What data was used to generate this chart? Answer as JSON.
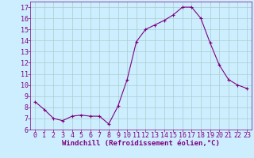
{
  "x": [
    0,
    1,
    2,
    3,
    4,
    5,
    6,
    7,
    8,
    9,
    10,
    11,
    12,
    13,
    14,
    15,
    16,
    17,
    18,
    19,
    20,
    21,
    22,
    23
  ],
  "y": [
    8.5,
    7.8,
    7.0,
    6.8,
    7.2,
    7.3,
    7.2,
    7.2,
    6.5,
    8.1,
    10.5,
    13.9,
    15.0,
    15.4,
    15.8,
    16.3,
    17.0,
    17.0,
    16.0,
    13.8,
    11.8,
    10.5,
    10.0,
    9.7
  ],
  "line_color": "#800080",
  "marker": "+",
  "marker_size": 3,
  "background_color": "#cceeff",
  "grid_color": "#aacccc",
  "xlabel": "Windchill (Refroidissement éolien,°C)",
  "xlabel_color": "#800080",
  "xlabel_fontsize": 6.5,
  "tick_color": "#800080",
  "tick_fontsize": 6,
  "ylim": [
    6,
    17.5
  ],
  "xlim": [
    -0.5,
    23.5
  ],
  "yticks": [
    6,
    7,
    8,
    9,
    10,
    11,
    12,
    13,
    14,
    15,
    16,
    17
  ],
  "xticks": [
    0,
    1,
    2,
    3,
    4,
    5,
    6,
    7,
    8,
    9,
    10,
    11,
    12,
    13,
    14,
    15,
    16,
    17,
    18,
    19,
    20,
    21,
    22,
    23
  ]
}
